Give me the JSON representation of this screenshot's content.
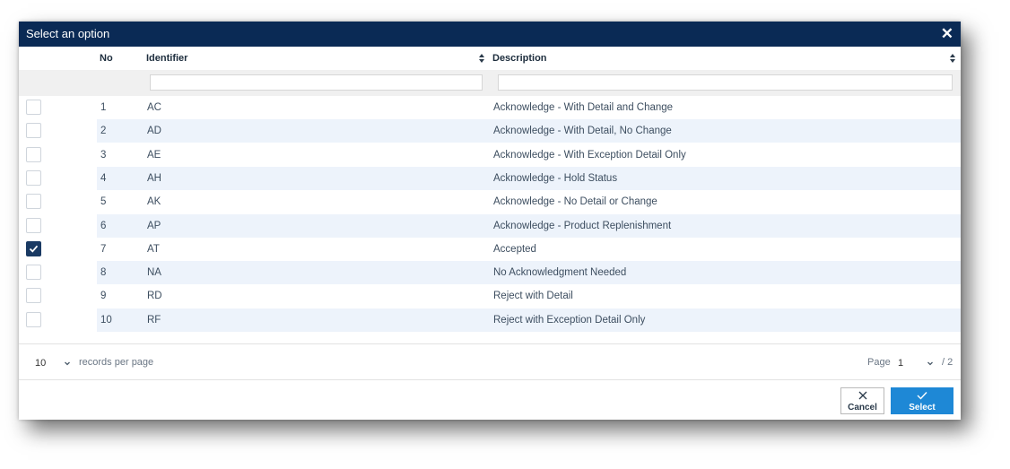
{
  "dialog": {
    "title": "Select an option",
    "close_icon": "close-icon",
    "colors": {
      "titlebar": "#0a2a55",
      "row_alt": "#edf3fb",
      "select_button": "#1e88d6",
      "checkbox_checked": "#1a3a63"
    }
  },
  "table": {
    "columns": {
      "no": "No",
      "identifier": "Identifier",
      "description": "Description"
    },
    "filters": {
      "identifier": "",
      "description": ""
    },
    "rows": [
      {
        "no": "1",
        "identifier": "AC",
        "description": "Acknowledge - With Detail and Change",
        "checked": false
      },
      {
        "no": "2",
        "identifier": "AD",
        "description": "Acknowledge - With Detail, No Change",
        "checked": false
      },
      {
        "no": "3",
        "identifier": "AE",
        "description": "Acknowledge - With Exception Detail Only",
        "checked": false
      },
      {
        "no": "4",
        "identifier": "AH",
        "description": "Acknowledge - Hold Status",
        "checked": false
      },
      {
        "no": "5",
        "identifier": "AK",
        "description": "Acknowledge - No Detail or Change",
        "checked": false
      },
      {
        "no": "6",
        "identifier": "AP",
        "description": "Acknowledge - Product Replenishment",
        "checked": false
      },
      {
        "no": "7",
        "identifier": "AT",
        "description": "Accepted",
        "checked": true
      },
      {
        "no": "8",
        "identifier": "NA",
        "description": "No Acknowledgment Needed",
        "checked": false
      },
      {
        "no": "9",
        "identifier": "RD",
        "description": "Reject with Detail",
        "checked": false
      },
      {
        "no": "10",
        "identifier": "RF",
        "description": "Reject with Exception Detail Only",
        "checked": false
      }
    ]
  },
  "pagination": {
    "per_page_value": "10",
    "per_page_label": "records per page",
    "page_label": "Page",
    "page_value": "1",
    "page_total": "/ 2"
  },
  "buttons": {
    "cancel": "Cancel",
    "select": "Select"
  }
}
